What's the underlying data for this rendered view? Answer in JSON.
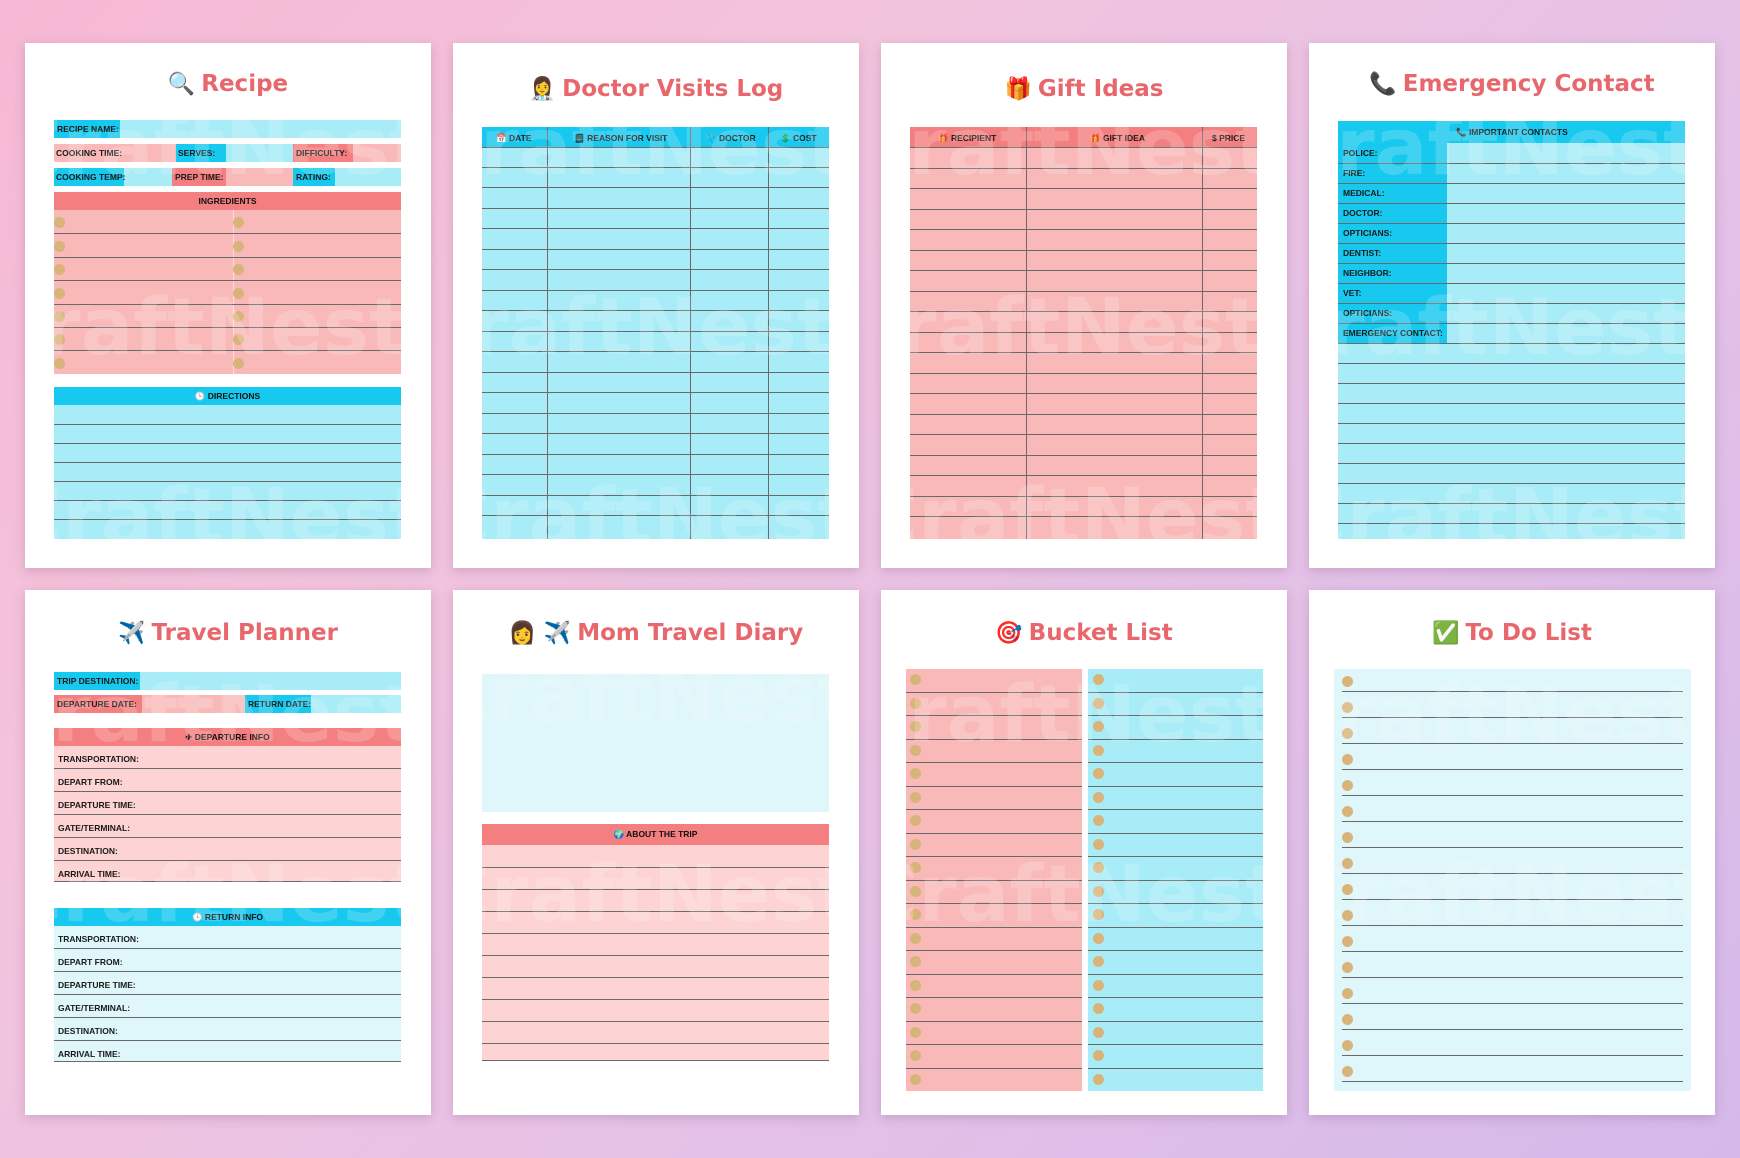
{
  "watermark": "CraftNest",
  "colors": {
    "pink": "#f9b9b9",
    "pink_header": "#f47f80",
    "blue": "#a8ecf8",
    "blue_header": "#18c9ef",
    "title": "#e8676d",
    "light_pink": "#fdd3d3",
    "light_blue": "#dff6fb"
  },
  "recipe": {
    "title": "Recipe",
    "icon": "🔍",
    "recipe_name": "RECIPE NAME:",
    "cooking_time": "COOKING TIME:",
    "serves": "SERVES:",
    "difficulty": "DIFFICULTY:",
    "cooking_temp": "COOKING TEMP:",
    "prep_time": "PREP TIME:",
    "rating": "RATING:",
    "ingredients": "INGREDIENTS",
    "directions": "🕒 DIRECTIONS"
  },
  "doctor": {
    "title": "Doctor Visits Log",
    "icon": "👩‍⚕️",
    "columns": [
      "📅 DATE",
      "🗒 REASON FOR VISIT",
      "🩺 DOCTOR",
      "💲 COST"
    ]
  },
  "gift": {
    "title": "Gift Ideas",
    "icon": "🎁",
    "columns": [
      "🎁 RECIPIENT",
      "🎁 GIFT IDEA",
      "$ PRICE"
    ]
  },
  "emergency": {
    "title": "Emergency Contact",
    "icon": "📞",
    "header": "📞 IMPORTANT CONTACTS",
    "labels": [
      "POLICE:",
      "FIRE:",
      "MEDICAL:",
      "DOCTOR:",
      "OPTICIANS:",
      "DENTIST:",
      "NEIGHBOR:",
      "VET:",
      "OPTICIANS:",
      "EMERGENCY CONTACT:"
    ]
  },
  "travel": {
    "title": "Travel Planner",
    "icon": "✈️",
    "trip_destination": "TRIP DESTINATION:",
    "departure_date": "DEPARTURE DATE:",
    "return_date": "RETURN DATE:",
    "departure_info": "✈ DEPARTURE INFO",
    "return_info": "🕒 RETURN INFO",
    "fields": [
      "TRANSPORTATION:",
      "DEPART FROM:",
      "DEPARTURE TIME:",
      "GATE/TERMINAL:",
      "DESTINATION:",
      "ARRIVAL TIME:"
    ]
  },
  "diary": {
    "title": "Mom Travel Diary",
    "icon": "👩 ✈️",
    "about": "🌍 ABOUT THE TRIP"
  },
  "bucket": {
    "title": "Bucket List",
    "icon": "🎯"
  },
  "todo": {
    "title": "To Do List",
    "icon": "✅"
  }
}
